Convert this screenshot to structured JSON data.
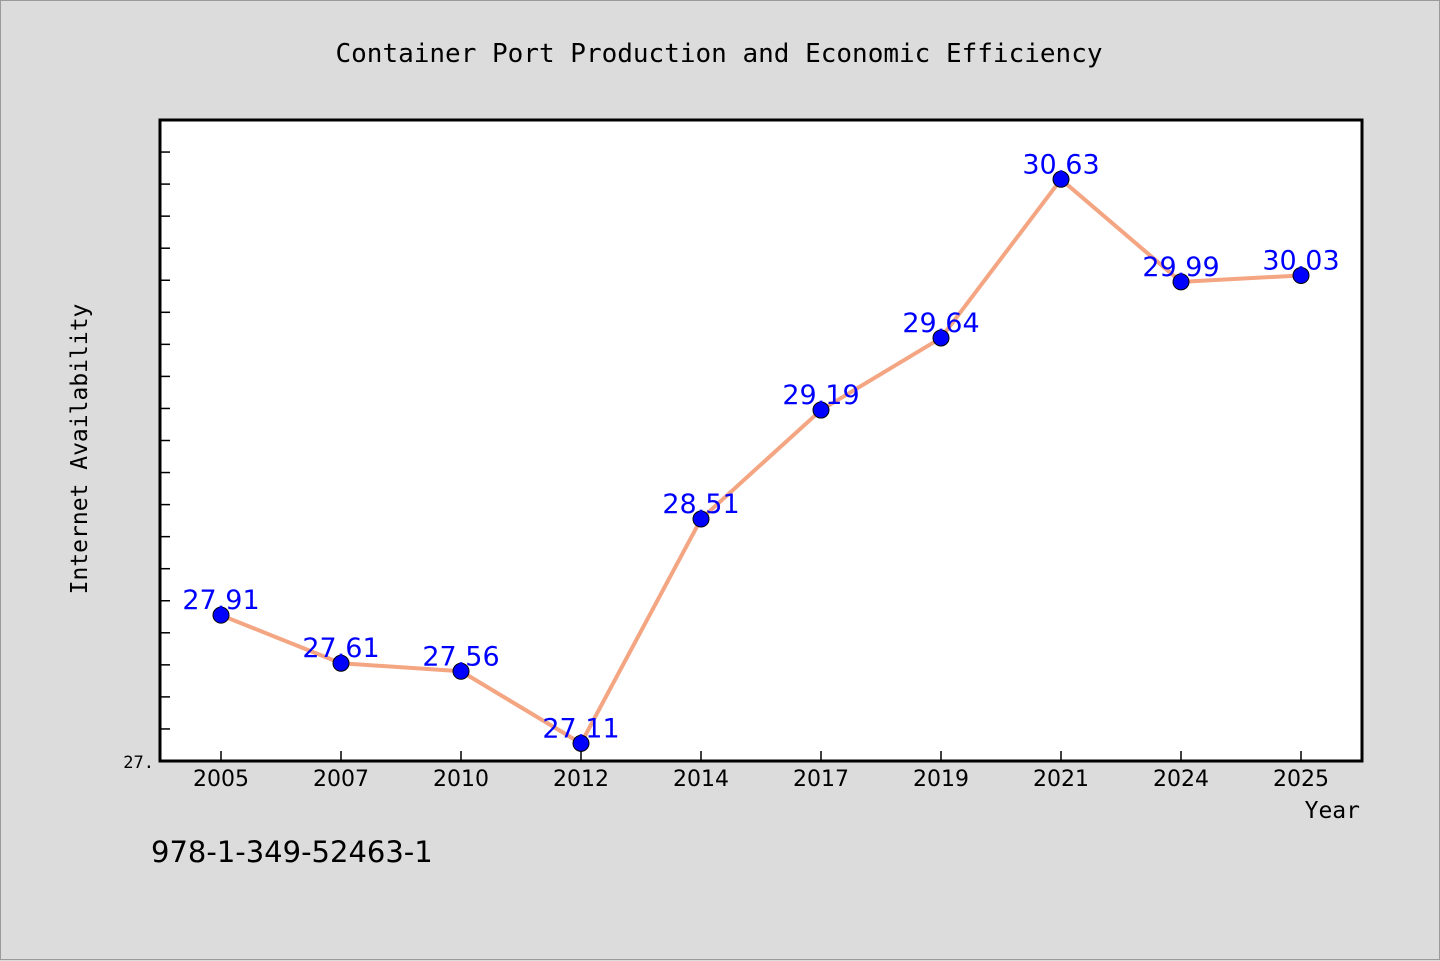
{
  "chart_data": {
    "type": "line",
    "title": "Container Port Production and Economic Efficiency",
    "xlabel": "Year",
    "ylabel": "Internet Availability",
    "categories": [
      "2005",
      "2007",
      "2010",
      "2012",
      "2014",
      "2017",
      "2019",
      "2021",
      "2024",
      "2025"
    ],
    "series": [
      {
        "values": [
          27.91,
          27.61,
          27.56,
          27.11,
          28.51,
          29.19,
          29.64,
          30.63,
          29.99,
          30.03
        ]
      }
    ],
    "value_labels": [
      "27.91",
      "27.61",
      "27.56",
      "27.11",
      "28.51",
      "29.19",
      "29.64",
      "30.63",
      "29.99",
      "30.03"
    ],
    "ylim": [
      27.0,
      31.0
    ],
    "ytick_label": "27.",
    "grid": false,
    "legend": "none",
    "colors": {
      "line": "#f4a582",
      "marker": "#0000ff",
      "label": "#0000ff"
    }
  },
  "footer": {
    "isbn": "978-1-349-52463-1"
  }
}
